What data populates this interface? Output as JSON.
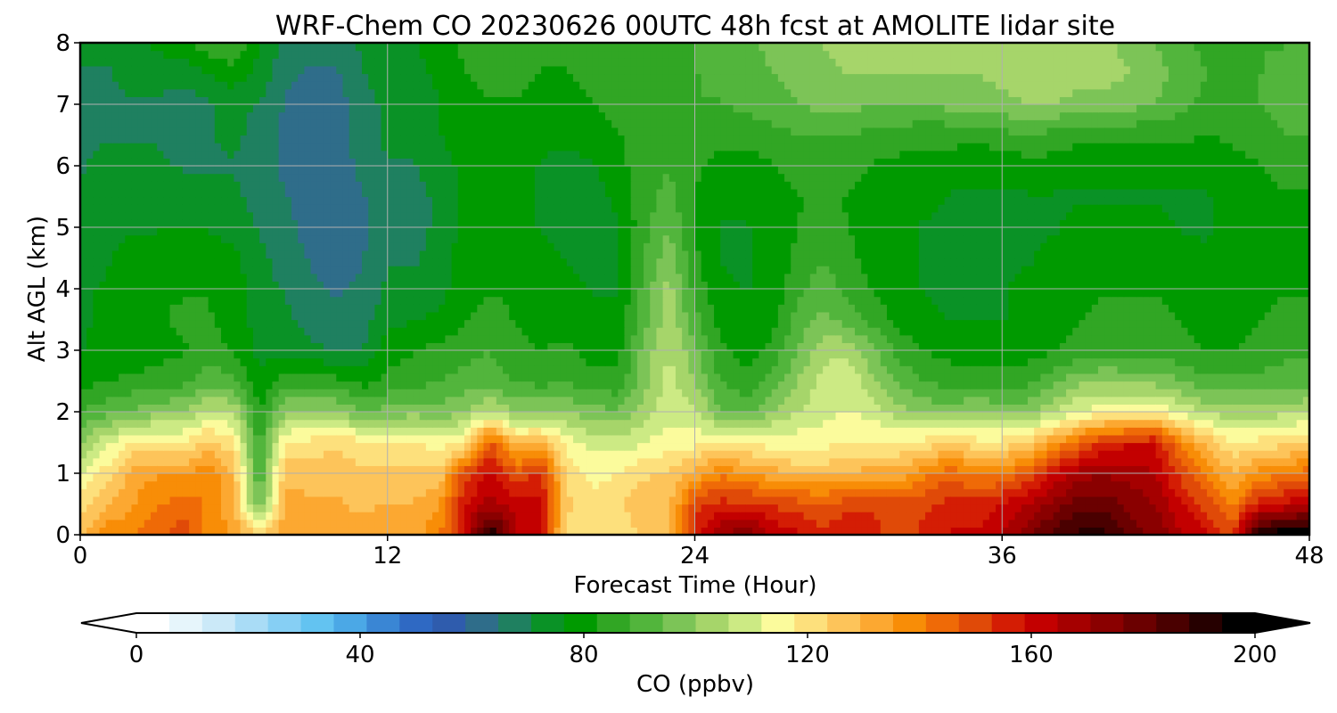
{
  "chart_data": {
    "type": "heatmap",
    "title": "WRF-Chem CO  20230626 00UTC 48h fcst at AMOLITE lidar site",
    "xlabel": "Forecast Time (Hour)",
    "ylabel": "Alt AGL (km)",
    "xlim": [
      0,
      48
    ],
    "ylim": [
      0,
      8
    ],
    "xticks": [
      0,
      12,
      24,
      36,
      48
    ],
    "yticks": [
      0,
      1,
      2,
      3,
      4,
      5,
      6,
      7,
      8
    ],
    "grid": true,
    "x": [
      0,
      1,
      2,
      3,
      4,
      5,
      6,
      7,
      8,
      9,
      10,
      11,
      12,
      13,
      14,
      15,
      16,
      17,
      18,
      19,
      20,
      21,
      22,
      23,
      24,
      25,
      26,
      27,
      28,
      29,
      30,
      31,
      32,
      33,
      34,
      35,
      36,
      37,
      38,
      39,
      40,
      41,
      42,
      43,
      44,
      45,
      46,
      47,
      48
    ],
    "y": [
      0,
      0.5,
      1,
      1.5,
      2,
      2.5,
      3,
      3.5,
      4,
      4.5,
      5,
      5.5,
      6,
      6.5,
      7,
      7.5,
      8
    ],
    "z_units": "ppbv",
    "z": [
      [
        125,
        140,
        140,
        145,
        150,
        140,
        135,
        122,
        135,
        135,
        130,
        132,
        132,
        132,
        140,
        160,
        195,
        165,
        158,
        120,
        120,
        120,
        125,
        130,
        155,
        170,
        175,
        165,
        160,
        155,
        160,
        155,
        150,
        155,
        160,
        160,
        165,
        175,
        185,
        190,
        190,
        180,
        175,
        165,
        160,
        150,
        195,
        200,
        200
      ],
      [
        122,
        128,
        135,
        140,
        145,
        140,
        130,
        92,
        132,
        130,
        130,
        128,
        130,
        130,
        135,
        158,
        168,
        162,
        160,
        125,
        120,
        122,
        128,
        128,
        150,
        155,
        155,
        152,
        150,
        148,
        150,
        152,
        150,
        152,
        155,
        155,
        160,
        165,
        172,
        180,
        180,
        175,
        170,
        160,
        150,
        140,
        155,
        160,
        165
      ],
      [
        112,
        120,
        132,
        135,
        135,
        140,
        128,
        88,
        128,
        128,
        128,
        125,
        125,
        125,
        125,
        150,
        160,
        148,
        155,
        122,
        115,
        118,
        122,
        125,
        132,
        140,
        135,
        132,
        128,
        128,
        130,
        132,
        132,
        140,
        145,
        140,
        140,
        148,
        160,
        168,
        170,
        168,
        165,
        150,
        140,
        130,
        138,
        140,
        145
      ],
      [
        100,
        110,
        118,
        120,
        118,
        125,
        120,
        85,
        118,
        120,
        122,
        120,
        118,
        118,
        115,
        118,
        148,
        128,
        130,
        115,
        110,
        108,
        112,
        115,
        115,
        120,
        118,
        115,
        115,
        115,
        118,
        118,
        118,
        120,
        125,
        120,
        120,
        125,
        135,
        145,
        155,
        158,
        158,
        140,
        128,
        118,
        120,
        122,
        125
      ],
      [
        88,
        92,
        95,
        98,
        100,
        108,
        105,
        82,
        100,
        102,
        100,
        95,
        96,
        98,
        96,
        100,
        108,
        98,
        100,
        100,
        96,
        95,
        102,
        110,
        108,
        95,
        92,
        100,
        106,
        110,
        112,
        110,
        102,
        98,
        98,
        100,
        98,
        98,
        105,
        112,
        115,
        115,
        118,
        110,
        105,
        102,
        102,
        104,
        105
      ],
      [
        80,
        82,
        84,
        85,
        86,
        92,
        90,
        78,
        85,
        86,
        84,
        80,
        84,
        86,
        88,
        90,
        92,
        88,
        86,
        88,
        84,
        84,
        98,
        108,
        100,
        88,
        84,
        90,
        100,
        108,
        112,
        100,
        92,
        88,
        86,
        86,
        86,
        86,
        92,
        98,
        100,
        98,
        98,
        94,
        90,
        90,
        90,
        92,
        92
      ],
      [
        76,
        78,
        78,
        80,
        82,
        84,
        82,
        75,
        74,
        72,
        70,
        70,
        80,
        82,
        84,
        86,
        88,
        84,
        82,
        84,
        80,
        80,
        96,
        106,
        96,
        84,
        80,
        84,
        94,
        104,
        104,
        96,
        86,
        82,
        80,
        80,
        80,
        80,
        82,
        84,
        86,
        86,
        86,
        84,
        82,
        82,
        84,
        86,
        86
      ],
      [
        76,
        77,
        80,
        82,
        83,
        83,
        80,
        74,
        72,
        68,
        66,
        68,
        74,
        76,
        78,
        82,
        84,
        82,
        80,
        80,
        78,
        78,
        92,
        104,
        90,
        80,
        78,
        80,
        90,
        96,
        92,
        86,
        80,
        78,
        76,
        76,
        76,
        78,
        80,
        82,
        84,
        84,
        84,
        82,
        80,
        80,
        82,
        84,
        84
      ],
      [
        76,
        77,
        80,
        82,
        82,
        82,
        80,
        73,
        70,
        66,
        64,
        66,
        72,
        72,
        74,
        80,
        82,
        82,
        80,
        78,
        76,
        76,
        90,
        102,
        86,
        78,
        76,
        78,
        86,
        92,
        86,
        82,
        78,
        76,
        76,
        76,
        76,
        78,
        78,
        80,
        82,
        82,
        82,
        80,
        78,
        78,
        80,
        82,
        82
      ],
      [
        74,
        76,
        78,
        80,
        80,
        80,
        78,
        72,
        68,
        64,
        62,
        64,
        70,
        70,
        72,
        80,
        82,
        80,
        78,
        76,
        74,
        76,
        88,
        98,
        84,
        76,
        76,
        78,
        84,
        88,
        84,
        80,
        78,
        76,
        76,
        76,
        76,
        76,
        78,
        78,
        80,
        80,
        80,
        78,
        77,
        78,
        80,
        80,
        80
      ],
      [
        72,
        74,
        76,
        76,
        76,
        76,
        74,
        70,
        66,
        63,
        62,
        64,
        68,
        68,
        72,
        78,
        80,
        80,
        76,
        74,
        74,
        76,
        86,
        94,
        82,
        76,
        76,
        78,
        82,
        86,
        82,
        80,
        78,
        76,
        76,
        74,
        74,
        76,
        76,
        78,
        78,
        78,
        78,
        76,
        76,
        78,
        80,
        80,
        80
      ],
      [
        72,
        74,
        74,
        74,
        74,
        74,
        72,
        68,
        65,
        62,
        62,
        64,
        68,
        68,
        72,
        78,
        80,
        78,
        76,
        74,
        74,
        78,
        86,
        90,
        82,
        78,
        78,
        80,
        82,
        84,
        82,
        80,
        78,
        78,
        76,
        76,
        76,
        76,
        76,
        76,
        76,
        76,
        76,
        76,
        76,
        78,
        80,
        82,
        82
      ],
      [
        70,
        72,
        72,
        72,
        70,
        70,
        70,
        66,
        64,
        62,
        62,
        66,
        70,
        70,
        74,
        78,
        80,
        78,
        76,
        74,
        76,
        80,
        86,
        88,
        84,
        80,
        80,
        82,
        84,
        84,
        84,
        82,
        80,
        80,
        80,
        78,
        78,
        80,
        80,
        78,
        78,
        78,
        78,
        78,
        78,
        80,
        82,
        84,
        84
      ],
      [
        70,
        70,
        70,
        70,
        68,
        70,
        72,
        68,
        64,
        62,
        62,
        68,
        72,
        72,
        76,
        80,
        82,
        80,
        78,
        78,
        80,
        82,
        86,
        86,
        86,
        84,
        84,
        86,
        88,
        88,
        88,
        86,
        86,
        84,
        84,
        84,
        86,
        88,
        86,
        84,
        84,
        84,
        84,
        84,
        82,
        84,
        86,
        88,
        88
      ],
      [
        70,
        70,
        70,
        70,
        68,
        70,
        72,
        70,
        64,
        62,
        62,
        68,
        72,
        72,
        76,
        80,
        82,
        82,
        80,
        80,
        82,
        84,
        86,
        86,
        88,
        88,
        90,
        92,
        94,
        96,
        96,
        94,
        94,
        94,
        96,
        96,
        98,
        100,
        100,
        98,
        98,
        96,
        94,
        90,
        86,
        86,
        88,
        90,
        90
      ],
      [
        70,
        70,
        72,
        72,
        72,
        76,
        80,
        74,
        66,
        64,
        64,
        70,
        74,
        74,
        78,
        82,
        84,
        84,
        82,
        82,
        84,
        86,
        86,
        86,
        88,
        90,
        92,
        94,
        96,
        98,
        100,
        100,
        100,
        100,
        100,
        100,
        102,
        104,
        104,
        102,
        102,
        100,
        96,
        92,
        88,
        88,
        88,
        90,
        90
      ],
      [
        72,
        72,
        74,
        78,
        82,
        86,
        88,
        78,
        68,
        66,
        66,
        72,
        76,
        76,
        80,
        84,
        86,
        86,
        84,
        84,
        86,
        86,
        88,
        88,
        88,
        90,
        92,
        96,
        98,
        100,
        102,
        102,
        100,
        100,
        100,
        100,
        102,
        104,
        104,
        104,
        102,
        98,
        94,
        90,
        86,
        86,
        88,
        88,
        88
      ]
    ]
  },
  "colorbar": {
    "label": "CO  (ppbv)",
    "min": 0,
    "max": 200,
    "ticks": [
      0,
      40,
      80,
      120,
      160,
      200
    ],
    "extend": "both",
    "colors": [
      "#ffffff",
      "#e6f5fb",
      "#cbe9f8",
      "#a9dcf6",
      "#86cff4",
      "#63c3f1",
      "#4ba8e6",
      "#3a86d4",
      "#2f69c3",
      "#2f5cad",
      "#2f6d8a",
      "#1f8060",
      "#0a9226",
      "#009a00",
      "#31a624",
      "#52b53c",
      "#7cc457",
      "#a6d56a",
      "#ccea84",
      "#fbfb9c",
      "#fde07c",
      "#fdc45a",
      "#fca831",
      "#f88d07",
      "#ef6a07",
      "#e04a08",
      "#d41d04",
      "#c30000",
      "#a50000",
      "#8a0000",
      "#6b0000",
      "#4a0000",
      "#260000",
      "#000000"
    ]
  }
}
